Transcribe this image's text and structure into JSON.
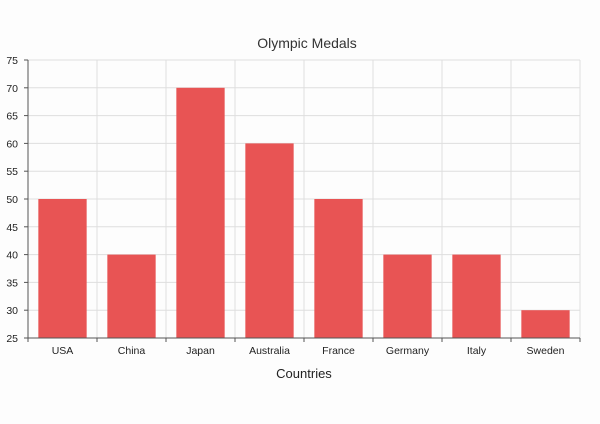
{
  "chart_data": {
    "type": "bar",
    "title": "Olympic Medals",
    "xlabel": "Countries",
    "ylabel": "",
    "categories": [
      "USA",
      "China",
      "Japan",
      "Australia",
      "France",
      "Germany",
      "Italy",
      "Sweden"
    ],
    "values": [
      50,
      40,
      70,
      60,
      50,
      40,
      40,
      30
    ],
    "ylim": [
      25,
      75
    ],
    "yticks": [
      25,
      30,
      35,
      40,
      45,
      50,
      55,
      60,
      65,
      70,
      75
    ],
    "grid": true,
    "legend": "none",
    "bar_color": "#e85454"
  }
}
